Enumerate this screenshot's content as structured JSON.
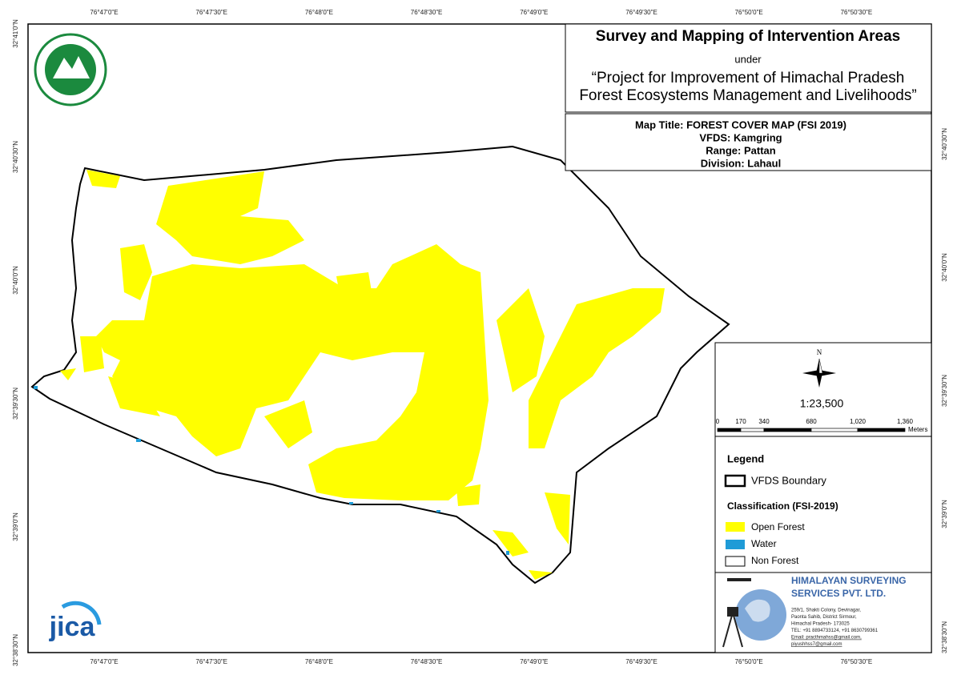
{
  "coordinates": {
    "top": [
      "76°47'0\"E",
      "76°47'30\"E",
      "76°48'0\"E",
      "76°48'30\"E",
      "76°49'0\"E",
      "76°49'30\"E",
      "76°50'0\"E",
      "76°50'30\"E"
    ],
    "bottom": [
      "76°47'0\"E",
      "76°47'30\"E",
      "76°48'0\"E",
      "76°48'30\"E",
      "76°49'0\"E",
      "76°49'30\"E",
      "76°50'0\"E",
      "76°50'30\"E"
    ],
    "left": [
      "32°41'0\"N",
      "32°40'30\"N",
      "32°40'0\"N",
      "32°39'30\"N",
      "32°39'0\"N",
      "32°38'30\"N"
    ],
    "right": [
      "32°40'30\"N",
      "32°40'0\"N",
      "32°39'30\"N",
      "32°39'0\"N",
      "32°38'30\"N"
    ]
  },
  "header": {
    "title": "Survey and Mapping of Intervention Areas",
    "under": "under",
    "project_line_1": "“Project for Improvement of Himachal Pradesh",
    "project_line_2": "Forest Ecosystems Management and Livelihoods”"
  },
  "map_info": {
    "map_title": "Map Title: FOREST COVER MAP (FSI 2019)",
    "vfds": "VFDS: Kamgring",
    "range": "Range: Pattan",
    "division": "Division: Lahaul"
  },
  "north_arrow": "N",
  "scale": "1:23,500",
  "scale_bar": {
    "labels": [
      "0",
      "170",
      "340",
      "680",
      "1,020",
      "1,360"
    ],
    "unit": "Meters"
  },
  "legend": {
    "title": "Legend",
    "boundary": "VFDS Boundary",
    "classification_title": "Classification (FSI-2019)",
    "items": [
      "Open Forest",
      "Water",
      "Non Forest"
    ]
  },
  "company": {
    "name_1": "HIMALAYAN SURVEYING",
    "name_2": "SERVICES PVT. LTD.",
    "address": [
      "259/1, Shakti Colony, Devinagar,",
      "Paonta Sahib, District Sirmour,",
      "Himachal Pradesh- 173025",
      "TEL: +91 8894733124, +91 8630799361",
      "Email: practhmahss@gmail.com,",
      "piyushhss7@gmail.com"
    ]
  },
  "logos": {
    "jica": "jica"
  }
}
